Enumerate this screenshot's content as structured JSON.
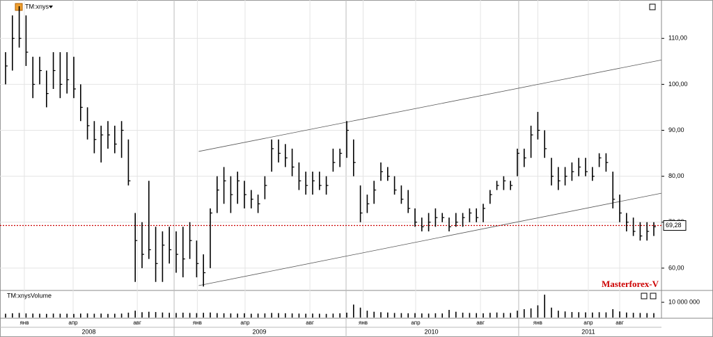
{
  "chart_data": {
    "type": "ohlc",
    "title": "TM:xnys",
    "volume_title": "TM:xnysVolume",
    "watermark": "Masterforex-V",
    "high": [
      107,
      115,
      117,
      115,
      106,
      106,
      103,
      107,
      107,
      107,
      106,
      100,
      95,
      92,
      91,
      92,
      91,
      92,
      88,
      72,
      70,
      79,
      69,
      68,
      69,
      68,
      69,
      70,
      66,
      63,
      73,
      80,
      82,
      80,
      81,
      79,
      77,
      76,
      80,
      88,
      88,
      87,
      86,
      83,
      81,
      81,
      81,
      80,
      86,
      86,
      92,
      88,
      78,
      76,
      79,
      83,
      82,
      80,
      78,
      77,
      73,
      71,
      72,
      73,
      72,
      71,
      72,
      72,
      73,
      73,
      74,
      77,
      79,
      80,
      79,
      86,
      86,
      91,
      94,
      90,
      84,
      82,
      82,
      83,
      84,
      84,
      82,
      85,
      85,
      81,
      76,
      72,
      71,
      70,
      70,
      70
    ],
    "low": [
      100,
      103,
      108,
      104,
      97,
      100,
      95,
      99,
      97,
      98,
      97,
      92,
      88,
      85,
      83,
      86,
      85,
      84,
      78,
      57,
      60,
      62,
      57,
      57,
      61,
      59,
      58,
      62,
      58,
      56,
      60,
      72,
      74,
      72,
      74,
      73,
      73,
      72,
      75,
      81,
      83,
      82,
      80,
      77,
      76,
      76,
      77,
      76,
      81,
      82,
      84,
      80,
      70,
      72,
      74,
      79,
      79,
      76,
      74,
      72,
      69,
      68,
      68,
      69,
      70,
      68,
      69,
      69,
      70,
      70,
      70,
      74,
      77,
      77,
      77,
      80,
      82,
      84,
      88,
      84,
      78,
      77,
      78,
      79,
      80,
      80,
      79,
      82,
      81,
      73,
      70,
      68,
      67,
      66,
      66,
      67
    ],
    "close": [
      104,
      110,
      110,
      107,
      100,
      103,
      98,
      103,
      100,
      101,
      99,
      95,
      91,
      88,
      89,
      89,
      87,
      90,
      79,
      66,
      63,
      64,
      61,
      65,
      64,
      63,
      62,
      66,
      61,
      59,
      72,
      77,
      79,
      76,
      79,
      76,
      75,
      74,
      78,
      86,
      85,
      84,
      82,
      79,
      78,
      79,
      78,
      78,
      83,
      85,
      90,
      83,
      72,
      74,
      77,
      81,
      80,
      77,
      75,
      73,
      70,
      69,
      70,
      71,
      71,
      69,
      70,
      71,
      72,
      71,
      73,
      76,
      78,
      79,
      78,
      85,
      84,
      89,
      90,
      86,
      80,
      79,
      80,
      81,
      82,
      81,
      80,
      84,
      83,
      75,
      72,
      70,
      68,
      67,
      68,
      69
    ],
    "volume": [
      2500000,
      2800000,
      3000000,
      2700000,
      2600000,
      2500000,
      2400000,
      2600000,
      2500000,
      2500000,
      2400000,
      2600000,
      2700000,
      2500000,
      2600000,
      2400000,
      2500000,
      2600000,
      3200000,
      4500000,
      3500000,
      3800000,
      3600000,
      3300000,
      3100000,
      3000000,
      3200000,
      3000000,
      2900000,
      3100000,
      3300000,
      2900000,
      2800000,
      2700000,
      2600000,
      2800000,
      2500000,
      2600000,
      2700000,
      3000000,
      2900000,
      2800000,
      2700000,
      2600000,
      2500000,
      2600000,
      2500000,
      2400000,
      2600000,
      2800000,
      3200000,
      8500000,
      6500000,
      4500000,
      3800000,
      3500000,
      3300000,
      3000000,
      2900000,
      2800000,
      2900000,
      2700000,
      2600000,
      2800000,
      2700000,
      5000000,
      3800000,
      3200000,
      3000000,
      2900000,
      2800000,
      3100000,
      3300000,
      3000000,
      3000000,
      4500000,
      5500000,
      6000000,
      8000000,
      15000000,
      6500000,
      4500000,
      4000000,
      3600000,
      3500000,
      3400000,
      3300000,
      3500000,
      3400000,
      5500000,
      4000000,
      3300000,
      3100000,
      3000000,
      2900000,
      2900000
    ],
    "ylim": [
      55.9,
      117.6
    ],
    "yticks": [
      {
        "value": 60,
        "label": "60,00"
      },
      {
        "value": 70,
        "label": "70,00"
      },
      {
        "value": 80,
        "label": "80,00"
      },
      {
        "value": 90,
        "label": "90,00"
      },
      {
        "value": 100,
        "label": "100,00"
      },
      {
        "value": 110,
        "label": "110,00"
      }
    ],
    "volume_ylim": [
      0,
      16400000
    ],
    "volume_yticks": [
      {
        "value": 10000000,
        "label": "10 000 000"
      }
    ],
    "xticks": [
      {
        "value": 2.75,
        "label": "янв"
      },
      {
        "value": 9.9,
        "label": "апр"
      },
      {
        "value": 19.3,
        "label": "авг"
      },
      {
        "value": 28.1,
        "label": "янв"
      },
      {
        "value": 35.1,
        "label": "апр"
      },
      {
        "value": 44.6,
        "label": "авг"
      },
      {
        "value": 52.4,
        "label": "янв"
      },
      {
        "value": 60.1,
        "label": "апр"
      },
      {
        "value": 69.6,
        "label": "авг"
      },
      {
        "value": 78,
        "label": "янв"
      },
      {
        "value": 85.4,
        "label": "апр"
      },
      {
        "value": 90,
        "label": "авг"
      }
    ],
    "year_labels": [
      {
        "value": 12.2,
        "label": "2008"
      },
      {
        "value": 37.2,
        "label": "2009"
      },
      {
        "value": 62.4,
        "label": "2010"
      },
      {
        "value": 85.4,
        "label": "2011"
      }
    ],
    "year_bounds": [
      24.7,
      49.9,
      75.2
    ],
    "trendlines": [
      {
        "from": [
          28.3,
          85.4
        ],
        "to": [
          96.1,
          105.3
        ]
      },
      {
        "from": [
          28.3,
          56.2
        ],
        "to": [
          96.1,
          76.3
        ]
      }
    ],
    "last_price": {
      "value": 69.28,
      "label": "69,28"
    },
    "color": "#000000",
    "last_price_color": "#cc0000",
    "grid": true
  }
}
